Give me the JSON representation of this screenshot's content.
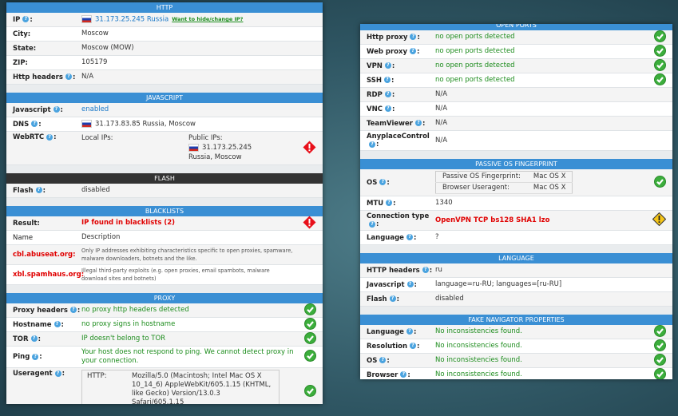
{
  "left": {
    "sections": [
      {
        "title": "HTTP",
        "rows": [
          {
            "label": [
              "IP",
              ":"
            ],
            "value": "31.173.25.245 Russia",
            "flag": true,
            "tone": "blue",
            "link": "Want to hide/change IP?"
          },
          {
            "label": "City:",
            "value": "Moscow"
          },
          {
            "label": "State:",
            "value": "Moscow (MOW)"
          },
          {
            "label": "ZIP:",
            "value": "105179"
          },
          {
            "label": [
              "Http headers",
              ":"
            ],
            "value": "N/A"
          }
        ]
      },
      {
        "title": "JAVASCRIPT",
        "rows": [
          {
            "label": [
              "Javascript",
              ":"
            ],
            "value": "enabled",
            "tone": "blue"
          },
          {
            "label": [
              "DNS",
              ":"
            ],
            "value": "31.173.83.85 Russia, Moscow",
            "flag": true
          },
          {
            "label": [
              "WebRTC",
              ":"
            ],
            "local": "Local IPs:",
            "public": {
              "title": "Public IPs:",
              "ip": "31.173.25.245",
              "location": "Russia, Moscow"
            },
            "status": "warn"
          }
        ]
      },
      {
        "title": "FLASH",
        "dark": true,
        "rows": [
          {
            "label": [
              "Flash",
              ":"
            ],
            "value": "disabled"
          }
        ]
      },
      {
        "title": "BLACKLISTS",
        "rows": [
          {
            "label": "Result:",
            "value": "IP found in blacklists (2)",
            "tone": "red",
            "bold": true,
            "status": "warn"
          },
          {
            "label": "Name",
            "value": "Description",
            "plain": true
          },
          {
            "label": "cbl.abuseat.org:",
            "labelTone": "red",
            "value": "Only IP addresses exhibiting characteristics specific to open proxies, spamware, malware downloaders, botnets and the like.",
            "small": true
          },
          {
            "label": "xbl.spamhaus.org:",
            "labelTone": "red",
            "value": "Illegal third-party exploits (e.g. open proxies, email spambots, malware download sites and botnets)",
            "small": true
          }
        ]
      },
      {
        "title": "PROXY",
        "rows": [
          {
            "label": [
              "Proxy headers",
              ":"
            ],
            "value": "no proxy http headers detected",
            "tone": "green",
            "status": "ok"
          },
          {
            "label": [
              "Hostname",
              ":"
            ],
            "value": "no proxy signs in hostname",
            "tone": "green",
            "status": "ok"
          },
          {
            "label": [
              "TOR",
              ":"
            ],
            "value": "IP doesn't belong to TOR",
            "tone": "green",
            "status": "ok"
          },
          {
            "label": [
              "Ping",
              ":"
            ],
            "value": "Your host does not respond to ping. We cannot detect proxy in your connection.",
            "tone": "green",
            "status": "ok"
          },
          {
            "label": [
              "Useragent",
              ":"
            ],
            "box": [
              [
                "HTTP:",
                "Mozilla/5.0 (Macintosh; Intel Mac OS X 10_14_6) AppleWebKit/605.1.15 (KHTML, like Gecko) Version/13.0.3 Safari/605.1.15"
              ]
            ],
            "status": "ok"
          }
        ]
      }
    ]
  },
  "right": {
    "sections": [
      {
        "title": "OPEN PORTS",
        "rows": [
          {
            "label": [
              "Http proxy",
              ":"
            ],
            "value": "no open ports detected",
            "tone": "green",
            "status": "ok"
          },
          {
            "label": [
              "Web proxy",
              ":"
            ],
            "value": "no open ports detected",
            "tone": "green",
            "status": "ok"
          },
          {
            "label": [
              "VPN",
              ":"
            ],
            "value": "no open ports detected",
            "tone": "green",
            "status": "ok"
          },
          {
            "label": [
              "SSH",
              ":"
            ],
            "value": "no open ports detected",
            "tone": "green",
            "status": "ok"
          },
          {
            "label": [
              "RDP",
              ":"
            ],
            "value": "N/A"
          },
          {
            "label": [
              "VNC",
              ":"
            ],
            "value": "N/A"
          },
          {
            "label": [
              "TeamViewer",
              ":"
            ],
            "value": "N/A"
          },
          {
            "label": [
              "AnyplaceControl",
              ":"
            ],
            "value": "N/A"
          }
        ]
      },
      {
        "title": "PASSIVE OS FINGERPRINT",
        "rows": [
          {
            "label": [
              "OS",
              ":"
            ],
            "table": [
              [
                "Passive OS Fingerprint:",
                "Mac OS X"
              ],
              [
                "Browser Useragent:",
                "Mac OS X"
              ]
            ],
            "status": "ok"
          },
          {
            "label": [
              "MTU",
              ":"
            ],
            "value": "1340"
          },
          {
            "label": [
              "Connection type",
              ":"
            ],
            "value": "OpenVPN TCP bs128 SHA1 lzo",
            "tone": "red",
            "bold": true,
            "status": "caution"
          },
          {
            "label": [
              "Language",
              ":"
            ],
            "value": "?"
          }
        ]
      },
      {
        "title": "LANGUAGE",
        "rows": [
          {
            "label": [
              "HTTP headers",
              ":"
            ],
            "value": "ru"
          },
          {
            "label": [
              "Javascript",
              ":"
            ],
            "value": "language=ru-RU; languages=[ru-RU]"
          },
          {
            "label": [
              "Flash",
              ":"
            ],
            "value": "disabled"
          }
        ]
      },
      {
        "title": "FAKE NAVIGATOR PROPERTIES",
        "rows": [
          {
            "label": [
              "Language",
              ":"
            ],
            "value": "No inconsistencies found.",
            "tone": "green",
            "status": "ok"
          },
          {
            "label": [
              "Resolution",
              ":"
            ],
            "value": "No inconsistencies found.",
            "tone": "green",
            "status": "ok"
          },
          {
            "label": [
              "OS",
              ":"
            ],
            "value": "No inconsistencies found.",
            "tone": "green",
            "status": "ok"
          },
          {
            "label": [
              "Browser",
              ":"
            ],
            "value": "No inconsistencies found.",
            "tone": "green",
            "status": "ok"
          }
        ]
      }
    ]
  }
}
